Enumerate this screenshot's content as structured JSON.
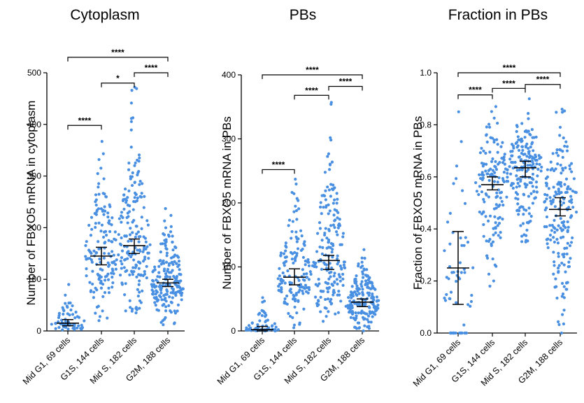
{
  "chart_data": [
    {
      "type": "scatter",
      "title": "Cytoplasm",
      "ylabel": "Number of FBXO5 mRNA in cytoplasm",
      "ylim": [
        0,
        500
      ],
      "yticks": [
        0,
        100,
        200,
        300,
        400,
        500
      ],
      "categories": [
        "Mid G1, 69 cells",
        "G1S, 144 cells",
        "Mid S, 182 cells",
        "G2M, 188 cells"
      ],
      "point_color": "#4a90e2",
      "series": [
        {
          "count": 69,
          "median": 15,
          "ci": [
            10,
            22
          ],
          "min": 2,
          "max": 90
        },
        {
          "count": 144,
          "median": 145,
          "ci": [
            128,
            162
          ],
          "min": 20,
          "max": 367
        },
        {
          "count": 182,
          "median": 165,
          "ci": [
            150,
            178
          ],
          "min": 35,
          "max": 472
        },
        {
          "count": 188,
          "median": 93,
          "ci": [
            86,
            100
          ],
          "min": 12,
          "max": 237
        }
      ],
      "comparisons": [
        {
          "from": 0,
          "to": 1,
          "y": 398,
          "label": "****"
        },
        {
          "from": 1,
          "to": 2,
          "y": 480,
          "label": "*"
        },
        {
          "from": 2,
          "to": 3,
          "y": 500,
          "label": "****"
        },
        {
          "from": 0,
          "to": 3,
          "y": 530,
          "label": "****"
        }
      ]
    },
    {
      "type": "scatter",
      "title": "PBs",
      "ylabel": "Number of FBXO5 mRNA in PBs",
      "ylim": [
        0,
        400
      ],
      "yticks": [
        0,
        100,
        200,
        300,
        400
      ],
      "categories": [
        "Mid G1, 69 cells",
        "G1S, 144 cells",
        "Mid S, 182 cells",
        "G2M, 188 cells"
      ],
      "point_color": "#4a90e2",
      "series": [
        {
          "count": 69,
          "median": 2,
          "ci": [
            0,
            7
          ],
          "min": 0,
          "max": 52
        },
        {
          "count": 144,
          "median": 84,
          "ci": [
            72,
            97
          ],
          "min": 5,
          "max": 237
        },
        {
          "count": 182,
          "median": 110,
          "ci": [
            96,
            118
          ],
          "min": 15,
          "max": 357
        },
        {
          "count": 188,
          "median": 45,
          "ci": [
            38,
            50
          ],
          "min": 0,
          "max": 127
        }
      ],
      "comparisons": [
        {
          "from": 0,
          "to": 1,
          "y": 252,
          "label": "****"
        },
        {
          "from": 1,
          "to": 2,
          "y": 368,
          "label": "****"
        },
        {
          "from": 2,
          "to": 3,
          "y": 382,
          "label": "****"
        },
        {
          "from": 0,
          "to": 3,
          "y": 400,
          "label": "****"
        }
      ]
    },
    {
      "type": "scatter",
      "title": "Fraction in PBs",
      "ylabel": "Fraction of FBXO5 mRNA in PBs",
      "ylim": [
        0,
        1.0
      ],
      "yticks": [
        0.0,
        0.2,
        0.4,
        0.6,
        0.8,
        1.0
      ],
      "tick_labels": [
        "0.0",
        "0.2",
        "0.4",
        "0.6",
        "0.8",
        "1.0"
      ],
      "categories": [
        "Mid G1, 69 cells",
        "G1S, 144 cells",
        "Mid S, 182 cells",
        "G2M, 188 cells"
      ],
      "point_color": "#4a90e2",
      "series": [
        {
          "count": 69,
          "median": 0.25,
          "ci": [
            0.11,
            0.39
          ],
          "min": 0.0,
          "max": 0.85,
          "zeros": 24
        },
        {
          "count": 144,
          "median": 0.57,
          "ci": [
            0.55,
            0.6
          ],
          "min": 0.18,
          "max": 0.87
        },
        {
          "count": 182,
          "median": 0.635,
          "ci": [
            0.6,
            0.66
          ],
          "min": 0.35,
          "max": 0.9
        },
        {
          "count": 188,
          "median": 0.475,
          "ci": [
            0.45,
            0.52
          ],
          "min": 0.0,
          "max": 0.86
        }
      ],
      "comparisons": [
        {
          "from": 0,
          "to": 1,
          "y": 0.915,
          "label": "****"
        },
        {
          "from": 1,
          "to": 2,
          "y": 0.94,
          "label": "****"
        },
        {
          "from": 2,
          "to": 3,
          "y": 0.955,
          "label": "****"
        },
        {
          "from": 0,
          "to": 3,
          "y": 1.0,
          "label": "****"
        }
      ]
    }
  ]
}
